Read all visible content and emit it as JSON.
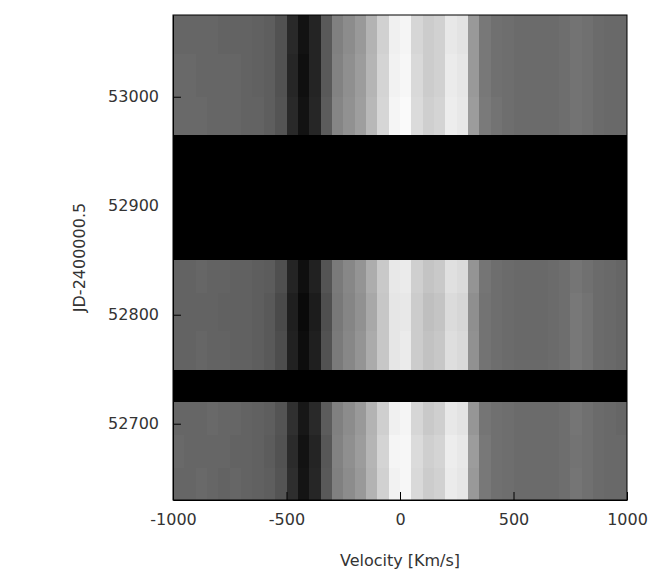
{
  "chart_data": {
    "type": "heatmap",
    "xlabel": "Velocity [Km/s]",
    "ylabel": "JD-2400000.5",
    "xlim": [
      -1000,
      1000
    ],
    "xticks": [
      -1000,
      -500,
      0,
      500,
      1000
    ],
    "ylim": [
      52630,
      53075
    ],
    "yticks": [
      52700,
      52800,
      52900,
      53000
    ],
    "zlim": [
      0,
      1
    ],
    "x_bins": [
      -1000,
      -950,
      -900,
      -850,
      -800,
      -750,
      -700,
      -650,
      -600,
      -550,
      -500,
      -450,
      -400,
      -350,
      -300,
      -250,
      -200,
      -150,
      -100,
      -50,
      0,
      50,
      100,
      150,
      200,
      250,
      300,
      350,
      400,
      450,
      500,
      550,
      600,
      650,
      700,
      750,
      800,
      850,
      900,
      950,
      1000
    ],
    "y_bins": [
      52630,
      52660,
      52690,
      52720,
      52750,
      52785,
      52820,
      52850,
      52965,
      53000,
      53040,
      53075
    ],
    "cells": [
      [
        0.4,
        0.4,
        0.41,
        0.4,
        0.39,
        0.4,
        0.39,
        0.38,
        0.37,
        0.33,
        0.18,
        0.08,
        0.15,
        0.35,
        0.5,
        0.55,
        0.6,
        0.7,
        0.82,
        0.95,
        0.97,
        0.85,
        0.8,
        0.82,
        0.92,
        0.9,
        0.6,
        0.47,
        0.44,
        0.43,
        0.42,
        0.42,
        0.42,
        0.42,
        0.43,
        0.46,
        0.44,
        0.42,
        0.41,
        0.41
      ],
      [
        0.41,
        0.4,
        0.4,
        0.4,
        0.4,
        0.39,
        0.39,
        0.38,
        0.36,
        0.32,
        0.17,
        0.07,
        0.14,
        0.34,
        0.51,
        0.56,
        0.61,
        0.71,
        0.83,
        0.96,
        0.97,
        0.86,
        0.81,
        0.83,
        0.93,
        0.91,
        0.61,
        0.47,
        0.44,
        0.43,
        0.42,
        0.42,
        0.42,
        0.42,
        0.43,
        0.45,
        0.44,
        0.42,
        0.41,
        0.41
      ],
      [
        0.4,
        0.4,
        0.4,
        0.41,
        0.4,
        0.4,
        0.39,
        0.38,
        0.37,
        0.33,
        0.19,
        0.09,
        0.16,
        0.36,
        0.5,
        0.55,
        0.6,
        0.7,
        0.81,
        0.94,
        0.96,
        0.84,
        0.79,
        0.81,
        0.91,
        0.89,
        0.59,
        0.46,
        0.44,
        0.43,
        0.42,
        0.42,
        0.42,
        0.42,
        0.43,
        0.46,
        0.44,
        0.42,
        0.41,
        0.4
      ],
      null,
      [
        0.39,
        0.39,
        0.4,
        0.39,
        0.39,
        0.38,
        0.38,
        0.37,
        0.35,
        0.3,
        0.13,
        0.05,
        0.12,
        0.32,
        0.48,
        0.53,
        0.58,
        0.67,
        0.78,
        0.9,
        0.92,
        0.8,
        0.76,
        0.78,
        0.87,
        0.85,
        0.57,
        0.45,
        0.43,
        0.42,
        0.41,
        0.41,
        0.41,
        0.42,
        0.43,
        0.47,
        0.45,
        0.42,
        0.41,
        0.4
      ],
      [
        0.39,
        0.39,
        0.39,
        0.39,
        0.38,
        0.38,
        0.38,
        0.37,
        0.35,
        0.29,
        0.12,
        0.04,
        0.11,
        0.31,
        0.47,
        0.52,
        0.57,
        0.66,
        0.78,
        0.9,
        0.91,
        0.8,
        0.75,
        0.77,
        0.86,
        0.84,
        0.56,
        0.45,
        0.43,
        0.42,
        0.41,
        0.41,
        0.41,
        0.42,
        0.43,
        0.47,
        0.45,
        0.42,
        0.41,
        0.4
      ],
      [
        0.39,
        0.39,
        0.4,
        0.39,
        0.39,
        0.38,
        0.38,
        0.37,
        0.36,
        0.31,
        0.14,
        0.06,
        0.13,
        0.33,
        0.48,
        0.53,
        0.58,
        0.68,
        0.79,
        0.91,
        0.92,
        0.81,
        0.77,
        0.79,
        0.88,
        0.86,
        0.58,
        0.46,
        0.43,
        0.42,
        0.41,
        0.41,
        0.41,
        0.42,
        0.43,
        0.46,
        0.44,
        0.42,
        0.41,
        0.4
      ],
      null,
      [
        0.41,
        0.41,
        0.41,
        0.4,
        0.4,
        0.4,
        0.39,
        0.39,
        0.37,
        0.33,
        0.16,
        0.07,
        0.15,
        0.36,
        0.52,
        0.57,
        0.62,
        0.72,
        0.84,
        0.96,
        0.98,
        0.86,
        0.81,
        0.83,
        0.93,
        0.91,
        0.61,
        0.48,
        0.45,
        0.43,
        0.42,
        0.42,
        0.42,
        0.42,
        0.43,
        0.45,
        0.44,
        0.42,
        0.41,
        0.41
      ],
      [
        0.41,
        0.41,
        0.4,
        0.4,
        0.4,
        0.4,
        0.39,
        0.38,
        0.37,
        0.32,
        0.15,
        0.06,
        0.14,
        0.35,
        0.51,
        0.56,
        0.61,
        0.71,
        0.83,
        0.95,
        0.97,
        0.85,
        0.8,
        0.82,
        0.92,
        0.9,
        0.6,
        0.47,
        0.44,
        0.43,
        0.42,
        0.42,
        0.42,
        0.42,
        0.43,
        0.45,
        0.44,
        0.42,
        0.41,
        0.41
      ],
      [
        0.4,
        0.4,
        0.4,
        0.4,
        0.39,
        0.39,
        0.39,
        0.38,
        0.37,
        0.32,
        0.16,
        0.07,
        0.14,
        0.35,
        0.5,
        0.55,
        0.6,
        0.7,
        0.82,
        0.94,
        0.96,
        0.84,
        0.8,
        0.82,
        0.91,
        0.89,
        0.6,
        0.47,
        0.44,
        0.43,
        0.42,
        0.42,
        0.42,
        0.42,
        0.43,
        0.45,
        0.44,
        0.42,
        0.41,
        0.41
      ]
    ]
  }
}
